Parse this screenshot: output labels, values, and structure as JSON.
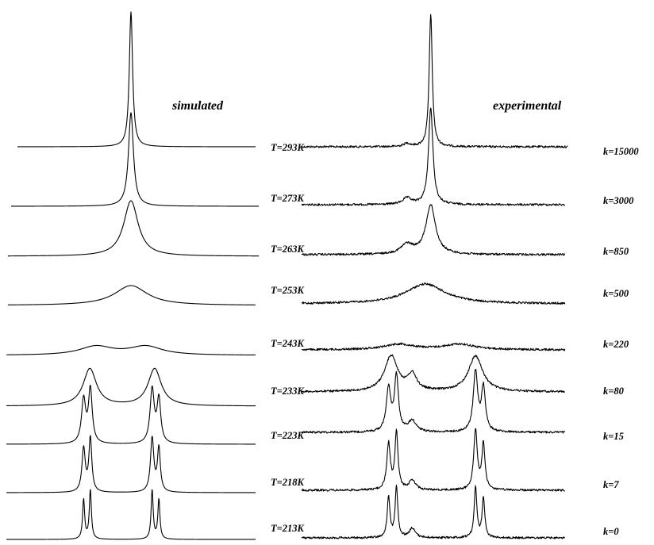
{
  "chart_data": [
    {
      "type": "line",
      "title": "simulated",
      "xlabel": "",
      "ylabel": "",
      "grid": false,
      "series": [
        {
          "temperature": "T=293K",
          "peaks": [
            {
              "pos": 0.5,
              "width": 0.008,
              "height": 170
            }
          ]
        },
        {
          "temperature": "T=273K",
          "peaks": [
            {
              "pos": 0.5,
              "width": 0.012,
              "height": 118
            }
          ]
        },
        {
          "temperature": "T=263K",
          "peaks": [
            {
              "pos": 0.5,
              "width": 0.035,
              "height": 70
            }
          ]
        },
        {
          "temperature": "T=253K",
          "peaks": [
            {
              "pos": 0.5,
              "width": 0.08,
              "height": 25
            }
          ]
        },
        {
          "temperature": "T=243K",
          "peaks": [
            {
              "pos": 0.36,
              "width": 0.08,
              "height": 11
            },
            {
              "pos": 0.56,
              "width": 0.08,
              "height": 11
            }
          ]
        },
        {
          "temperature": "T=233K",
          "peaks": [
            {
              "pos": 0.335,
              "width": 0.032,
              "height": 47
            },
            {
              "pos": 0.595,
              "width": 0.032,
              "height": 47
            }
          ]
        },
        {
          "temperature": "T=223K",
          "peaks": [
            {
              "pos": 0.31,
              "width": 0.01,
              "height": 55
            },
            {
              "pos": 0.337,
              "width": 0.009,
              "height": 68
            },
            {
              "pos": 0.585,
              "width": 0.01,
              "height": 68
            },
            {
              "pos": 0.612,
              "width": 0.009,
              "height": 55
            }
          ]
        },
        {
          "temperature": "T=218K",
          "peaks": [
            {
              "pos": 0.31,
              "width": 0.008,
              "height": 55
            },
            {
              "pos": 0.337,
              "width": 0.007,
              "height": 68
            },
            {
              "pos": 0.585,
              "width": 0.008,
              "height": 68
            },
            {
              "pos": 0.612,
              "width": 0.007,
              "height": 55
            }
          ]
        },
        {
          "temperature": "T=213K",
          "peaks": [
            {
              "pos": 0.31,
              "width": 0.005,
              "height": 50
            },
            {
              "pos": 0.337,
              "width": 0.005,
              "height": 62
            },
            {
              "pos": 0.585,
              "width": 0.005,
              "height": 62
            },
            {
              "pos": 0.612,
              "width": 0.005,
              "height": 50
            }
          ]
        }
      ]
    },
    {
      "type": "line",
      "title": "experimental",
      "xlabel": "",
      "ylabel": "",
      "grid": false,
      "series": [
        {
          "temperature": "T=293K",
          "rate": "k=15000",
          "peaks": [
            {
              "pos": 0.49,
              "width": 0.007,
              "height": 168
            },
            {
              "pos": 0.4,
              "width": 0.015,
              "height": 4
            }
          ]
        },
        {
          "temperature": "T=273K",
          "rate": "k=3000",
          "peaks": [
            {
              "pos": 0.49,
              "width": 0.01,
              "height": 122
            },
            {
              "pos": 0.4,
              "width": 0.02,
              "height": 8
            }
          ]
        },
        {
          "temperature": "T=263K",
          "rate": "k=850",
          "peaks": [
            {
              "pos": 0.49,
              "width": 0.022,
              "height": 62
            },
            {
              "pos": 0.4,
              "width": 0.028,
              "height": 12
            }
          ]
        },
        {
          "temperature": "T=253K",
          "rate": "k=500",
          "peaks": [
            {
              "pos": 0.47,
              "width": 0.09,
              "height": 25
            }
          ]
        },
        {
          "temperature": "T=243K",
          "rate": "k=220",
          "peaks": [
            {
              "pos": 0.37,
              "width": 0.07,
              "height": 7
            },
            {
              "pos": 0.6,
              "width": 0.07,
              "height": 7
            }
          ]
        },
        {
          "temperature": "T=233K",
          "rate": "k=80",
          "peaks": [
            {
              "pos": 0.34,
              "width": 0.03,
              "height": 45
            },
            {
              "pos": 0.42,
              "width": 0.02,
              "height": 20
            },
            {
              "pos": 0.66,
              "width": 0.032,
              "height": 45
            }
          ]
        },
        {
          "temperature": "T=223K",
          "rate": "k=15",
          "peaks": [
            {
              "pos": 0.33,
              "width": 0.01,
              "height": 55
            },
            {
              "pos": 0.36,
              "width": 0.009,
              "height": 70
            },
            {
              "pos": 0.42,
              "width": 0.018,
              "height": 14
            },
            {
              "pos": 0.66,
              "width": 0.01,
              "height": 75
            },
            {
              "pos": 0.69,
              "width": 0.009,
              "height": 55
            }
          ]
        },
        {
          "temperature": "T=218K",
          "rate": "k=7",
          "peaks": [
            {
              "pos": 0.33,
              "width": 0.008,
              "height": 58
            },
            {
              "pos": 0.36,
              "width": 0.007,
              "height": 72
            },
            {
              "pos": 0.42,
              "width": 0.015,
              "height": 12
            },
            {
              "pos": 0.66,
              "width": 0.008,
              "height": 76
            },
            {
              "pos": 0.69,
              "width": 0.007,
              "height": 58
            }
          ]
        },
        {
          "temperature": "T=213K",
          "rate": "k=0",
          "peaks": [
            {
              "pos": 0.33,
              "width": 0.006,
              "height": 52
            },
            {
              "pos": 0.36,
              "width": 0.006,
              "height": 64
            },
            {
              "pos": 0.42,
              "width": 0.013,
              "height": 12
            },
            {
              "pos": 0.66,
              "width": 0.006,
              "height": 64
            },
            {
              "pos": 0.69,
              "width": 0.006,
              "height": 50
            }
          ]
        }
      ]
    }
  ],
  "colors": {
    "line": "#000000",
    "background": "#ffffff"
  }
}
